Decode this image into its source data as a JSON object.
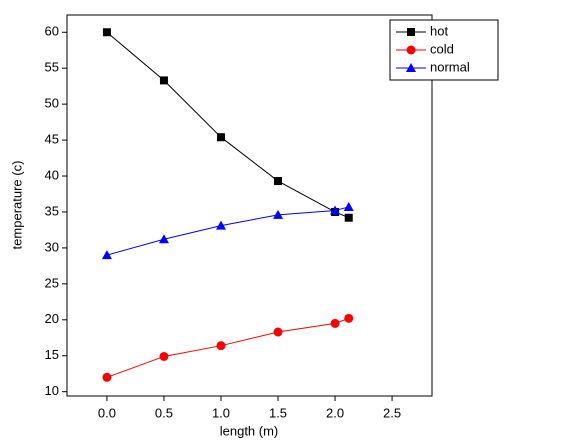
{
  "chart_data": {
    "type": "line",
    "x_label": "length (m)",
    "y_label": "temperature (c)",
    "x": [
      0,
      0.5,
      1,
      1.5,
      2,
      2.12
    ],
    "series": [
      {
        "name": "hot",
        "color": "#000000",
        "marker": "square",
        "values": [
          60,
          53.3,
          45.4,
          39.3,
          35,
          34.2
        ]
      },
      {
        "name": "cold",
        "color": "#ff0000",
        "marker": "circle",
        "values": [
          12,
          14.9,
          16.4,
          18.3,
          19.5,
          20.2
        ]
      },
      {
        "name": "normal",
        "color": "#0000ff",
        "marker": "triangle",
        "values": [
          29,
          31.2,
          33.1,
          34.6,
          35.2,
          35.7
        ]
      }
    ],
    "xlim": [
      -0.35,
      2.85
    ],
    "ylim": [
      9.4,
      62.4
    ],
    "xticks": [
      {
        "value": 0,
        "label": "0.0"
      },
      {
        "value": 0.5,
        "label": "0.5"
      },
      {
        "value": 1,
        "label": "1.0"
      },
      {
        "value": 1.5,
        "label": "1.5"
      },
      {
        "value": 2,
        "label": "2.0"
      },
      {
        "value": 2.5,
        "label": "2.5"
      }
    ],
    "yticks": [
      10,
      15,
      20,
      25,
      30,
      35,
      40,
      45,
      50,
      55,
      60
    ],
    "legend": "top-right",
    "grid": false
  }
}
